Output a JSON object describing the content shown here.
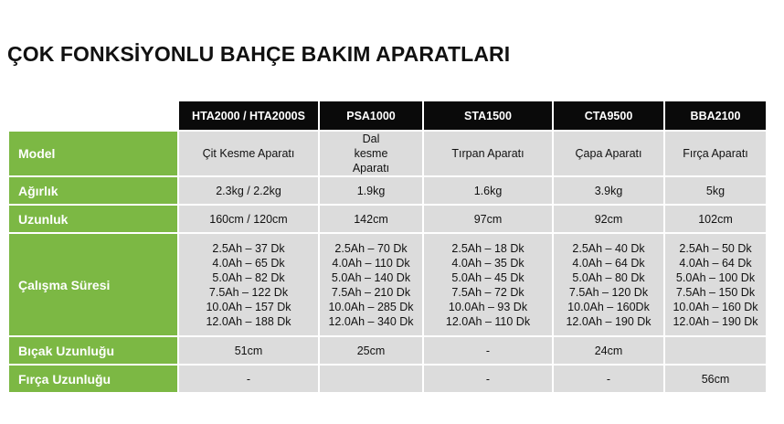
{
  "title": "ÇOK FONKSİYONLU BAHÇE BAKIM APARATLARI",
  "colors": {
    "label_bg": "#7cb844",
    "header_bg": "#0a0a0a",
    "cell_bg": "#dcdcdc"
  },
  "columns": [
    "HTA2000 / HTA2000S",
    "PSA1000",
    "STA1500",
    "CTA9500",
    "BBA2100"
  ],
  "rows": [
    {
      "label": "Model",
      "values": [
        "Çit Kesme Aparatı",
        "Dal kesme Aparatı",
        "Tırpan Aparatı",
        "Çapa Aparatı",
        "Fırça Aparatı"
      ]
    },
    {
      "label": "Ağırlık",
      "values": [
        "2.3kg / 2.2kg",
        "1.9kg",
        "1.6kg",
        "3.9kg",
        "5kg"
      ]
    },
    {
      "label": "Uzunluk",
      "values": [
        "160cm / 120cm",
        "142cm",
        "97cm",
        "92cm",
        "102cm"
      ]
    },
    {
      "label": "Çalışma Süresi",
      "values": [
        [
          "2.5Ah – 37 Dk",
          "4.0Ah – 65 Dk",
          "5.0Ah – 82 Dk",
          "7.5Ah – 122 Dk",
          "10.0Ah – 157 Dk",
          "12.0Ah – 188 Dk"
        ],
        [
          "2.5Ah – 70 Dk",
          "4.0Ah – 110 Dk",
          "5.0Ah – 140 Dk",
          "7.5Ah – 210 Dk",
          "10.0Ah – 285 Dk",
          "12.0Ah – 340 Dk"
        ],
        [
          "2.5Ah – 18 Dk",
          "4.0Ah – 35 Dk",
          "5.0Ah – 45 Dk",
          "7.5Ah – 72 Dk",
          "10.0Ah – 93 Dk",
          "12.0Ah – 110 Dk"
        ],
        [
          "2.5Ah – 40 Dk",
          "4.0Ah – 64 Dk",
          "5.0Ah – 80 Dk",
          "7.5Ah – 120 Dk",
          "10.0Ah – 160Dk",
          "12.0Ah – 190 Dk"
        ],
        [
          "2.5Ah – 50 Dk",
          "4.0Ah – 64 Dk",
          "5.0Ah – 100 Dk",
          "7.5Ah – 150 Dk",
          "10.0Ah – 160 Dk",
          "12.0Ah – 190 Dk"
        ]
      ]
    },
    {
      "label": "Bıçak Uzunluğu",
      "values": [
        "51cm",
        "25cm",
        "-",
        "24cm",
        ""
      ]
    },
    {
      "label": "Fırça Uzunluğu",
      "values": [
        "-",
        "",
        "-",
        "-",
        "56cm"
      ]
    }
  ]
}
